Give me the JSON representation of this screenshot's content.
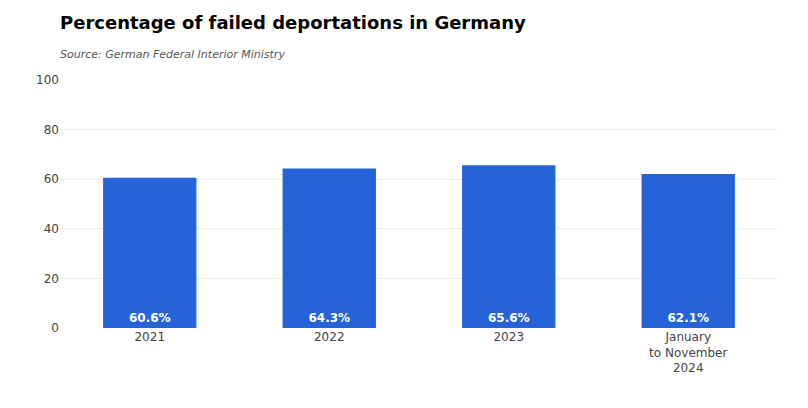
{
  "chart_data": {
    "type": "bar",
    "title": "Percentage of failed deportations in Germany",
    "subtitle": "Source: German Federal Interior Ministry",
    "categories": [
      "2021",
      "2022",
      "2023",
      "January\nto November\n2024"
    ],
    "values": [
      60.6,
      64.3,
      65.6,
      62.1
    ],
    "value_labels": [
      "60.6%",
      "64.3%",
      "65.6%",
      "62.1%"
    ],
    "data_labels": true,
    "color": "#2563d9",
    "ylim": [
      0,
      100
    ],
    "yticks": [
      0,
      20,
      40,
      60,
      80,
      100
    ],
    "grid": true
  }
}
